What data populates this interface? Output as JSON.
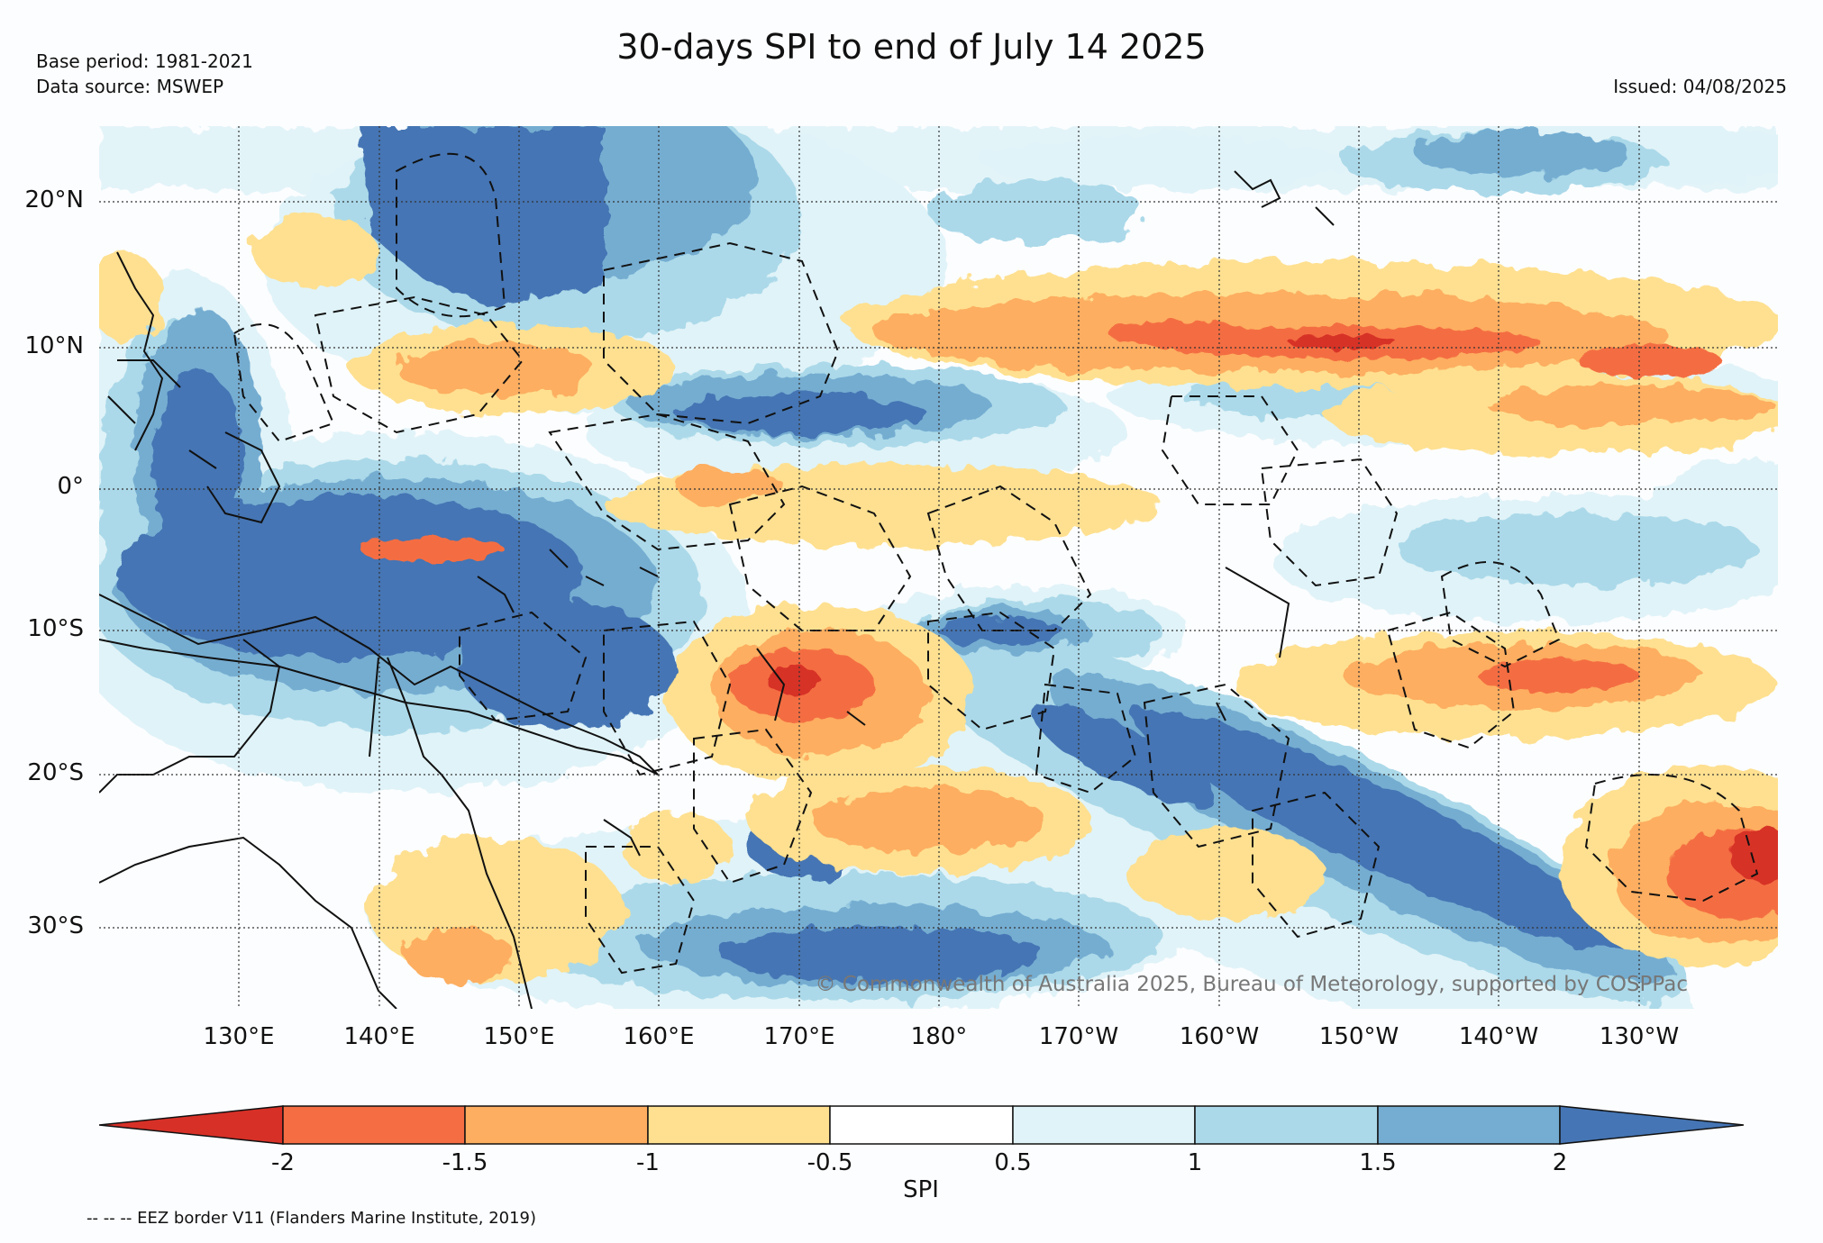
{
  "header": {
    "title": "30-days SPI to end of July 14 2025",
    "base_period": "Base period: 1981-2021",
    "data_source": "Data source: MSWEP",
    "issued": "Issued: 04/08/2025"
  },
  "map": {
    "latitude_labels": [
      "20°N",
      "10°N",
      "0°",
      "10°S",
      "20°S",
      "30°S"
    ],
    "longitude_labels": [
      "130°E",
      "140°E",
      "150°E",
      "160°E",
      "170°E",
      "180°",
      "170°W",
      "160°W",
      "150°W",
      "140°W",
      "130°W"
    ],
    "copyright": "© Commonwealth of Australia 2025, Bureau of Meteorology, supported by COSPPac",
    "dry_colors": [
      "#d73027",
      "#f46d43",
      "#fdae61",
      "#fee090"
    ],
    "wet_colors": [
      "#e0f3f8",
      "#abd9e9",
      "#74add1",
      "#4575b4"
    ]
  },
  "colorbar": {
    "label": "SPI",
    "ticks": [
      "-2",
      "-1.5",
      "-1",
      "-0.5",
      "0.5",
      "1",
      "1.5",
      "2"
    ],
    "colors": [
      "#d73027",
      "#f46d43",
      "#fdae61",
      "#fee090",
      "#ffffff",
      "#e0f3f8",
      "#abd9e9",
      "#74add1",
      "#4575b4"
    ]
  },
  "footer": {
    "eez_note": "-- -- -- EEZ border V11 (Flanders Marine Institute, 2019)"
  }
}
